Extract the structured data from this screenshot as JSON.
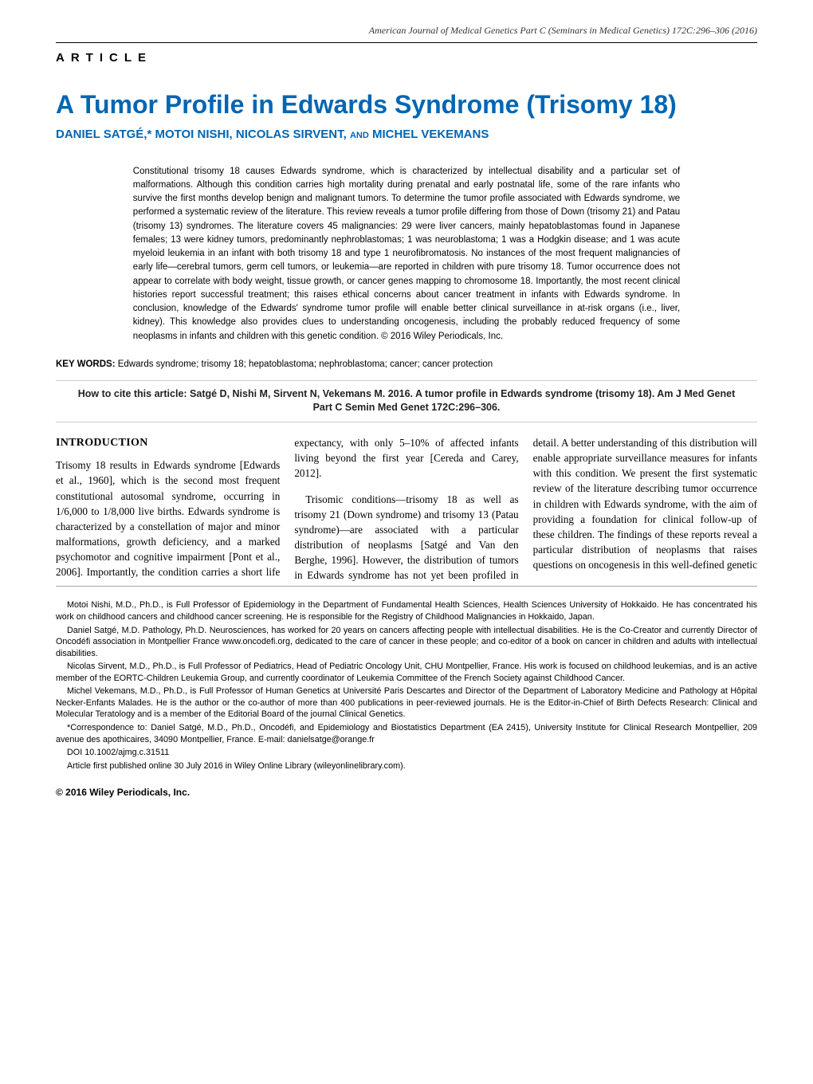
{
  "header": {
    "journal_line": "American Journal of Medical Genetics Part C (Seminars in Medical Genetics) 172C:296–306 (2016)"
  },
  "labels": {
    "article": "ARTICLE"
  },
  "title": "A Tumor Profile in Edwards Syndrome (Trisomy 18)",
  "authors_line": "DANIEL SATGÉ,* MOTOI NISHI, NICOLAS SIRVENT, ",
  "authors_and": "AND",
  "authors_last": " MICHEL VEKEMANS",
  "abstract": "Constitutional trisomy 18 causes Edwards syndrome, which is characterized by intellectual disability and a particular set of malformations. Although this condition carries high mortality during prenatal and early postnatal life, some of the rare infants who survive the first months develop benign and malignant tumors. To determine the tumor profile associated with Edwards syndrome, we performed a systematic review of the literature. This review reveals a tumor profile differing from those of Down (trisomy 21) and Patau (trisomy 13) syndromes. The literature covers 45 malignancies: 29 were liver cancers, mainly hepatoblastomas found in Japanese females; 13 were kidney tumors, predominantly nephroblastomas; 1 was neuroblastoma; 1 was a Hodgkin disease; and 1 was acute myeloid leukemia in an infant with both trisomy 18 and type 1 neurofibromatosis. No instances of the most frequent malignancies of early life—cerebral tumors, germ cell tumors, or leukemia—are reported in children with pure trisomy 18. Tumor occurrence does not appear to correlate with body weight, tissue growth, or cancer genes mapping to chromosome 18. Importantly, the most recent clinical histories report successful treatment; this raises ethical concerns about cancer treatment in infants with Edwards syndrome. In conclusion, knowledge of the Edwards' syndrome tumor profile will enable better clinical surveillance in at-risk organs (i.e., liver, kidney). This knowledge also provides clues to understanding oncogenesis, including the probably reduced frequency of some neoplasms in infants and children with this genetic condition. © 2016 Wiley Periodicals, Inc.",
  "keywords": {
    "label": "KEY WORDS:",
    "text": " Edwards syndrome; trisomy 18; hepatoblastoma; nephroblastoma; cancer; cancer protection"
  },
  "citation": "How to cite this article: Satgé D, Nishi M, Sirvent N, Vekemans M. 2016. A tumor profile in Edwards syndrome (trisomy 18). Am J Med Genet Part C Semin Med Genet 172C:296–306.",
  "intro": {
    "heading": "INTRODUCTION",
    "body": "Trisomy 18 results in Edwards syndrome [Edwards et al., 1960], which is the second most frequent constitutional autosomal syndrome, occurring in 1/6,000 to 1/8,000 live births. Edwards syndrome is characterized by a constellation of major and minor malformations, growth deficiency, and a marked psychomotor and cognitive impairment [Pont et al., 2006]. Importantly, the condition carries a short life expectancy, with only 5–10% of affected infants living beyond the first year [Cereda and Carey, 2012].",
    "body2": "Trisomic conditions—trisomy 18 as well as trisomy 21 (Down syndrome) and trisomy 13 (Patau syndrome)—are associated with a particular distribution of neoplasms [Satgé and Van den Berghe, 1996]. However, the distribution of tumors in Edwards syndrome has not yet been profiled in detail. A better understanding of this distribution will enable appropriate surveillance measures for infants with this condition. We present the first systematic review of the literature describing tumor occurrence in children with Edwards syndrome, with the aim of providing a foundation for clinical follow-up of these children. The findings of these reports reveal a particular distribution of neoplasms that raises questions on oncogenesis in this well-defined genetic"
  },
  "bios": {
    "p1": "Motoi Nishi, M.D., Ph.D., is Full Professor of Epidemiology in the Department of Fundamental Health Sciences, Health Sciences University of Hokkaido. He has concentrated his work on childhood cancers and childhood cancer screening. He is responsible for the Registry of Childhood Malignancies in Hokkaido, Japan.",
    "p2": "Daniel Satgé, M.D. Pathology, Ph.D. Neurosciences, has worked for 20 years on cancers affecting people with intellectual disabilities. He is the Co-Creator and currently Director of Oncodéfi association in Montpellier France www.oncodefi.org, dedicated to the care of cancer in these people; and co-editor of a book on cancer in children and adults with intellectual disabilities.",
    "p3": "Nicolas Sirvent, M.D., Ph.D., is Full Professor of Pediatrics, Head of Pediatric Oncology Unit, CHU Montpellier, France. His work is focused on childhood leukemias, and is an active member of the EORTC-Children Leukemia Group, and currently coordinator of Leukemia Committee of the French Society against Childhood Cancer.",
    "p4": "Michel Vekemans, M.D., Ph.D., is Full Professor of Human Genetics at Université Paris Descartes and Director of the Department of Laboratory Medicine and Pathology at Hôpital Necker-Enfants Malades. He is the author or the co-author of more than 400 publications in peer-reviewed journals. He is the Editor-in-Chief of Birth Defects Research: Clinical and Molecular Teratology and is a member of the Editorial Board of the journal Clinical Genetics.",
    "p5": "*Correspondence to: Daniel Satgé, M.D., Ph.D., Oncodéfi, and Epidemiology and Biostatistics Department (EA 2415), University Institute for Clinical Research Montpellier, 209 avenue des apothicaires, 34090 Montpellier, France. E-mail: danielsatge@orange.fr",
    "p6": "DOI 10.1002/ajmg.c.31511",
    "p7": "Article first published online 30 July 2016 in Wiley Online Library (wileyonlinelibrary.com)."
  },
  "copyright": "© 2016 Wiley Periodicals, Inc.",
  "styles": {
    "title_color": "#0066b3",
    "authors_color": "#0066b3",
    "body_font": "Georgia, 'Times New Roman', serif",
    "sans_font": "Arial, Helvetica, sans-serif",
    "title_fontsize": 32,
    "body_fontsize": 13,
    "abstract_fontsize": 11.5,
    "bios_fontsize": 10.8,
    "column_count": 3,
    "background": "#ffffff"
  }
}
